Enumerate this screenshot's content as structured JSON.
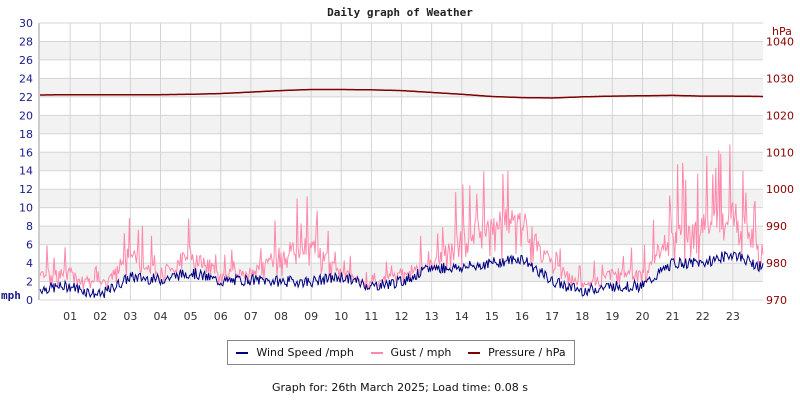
{
  "title": "Daily graph of Weather",
  "footer": "Graph for: 26th March 2025; Load time: 0.08 s",
  "legend": [
    {
      "label": "Wind Speed /mph",
      "color": "#000080"
    },
    {
      "label": "Gust / mph",
      "color": "#ff88aa"
    },
    {
      "label": "Pressure / hPa",
      "color": "#800000"
    }
  ],
  "colors": {
    "wind": "#000080",
    "gust": "#ff88aa",
    "pressure": "#800000",
    "left_axis": "#1a1a8c",
    "right_axis": "#8b0000",
    "grid": "#d4d4d4",
    "band": "#f2f2f2"
  },
  "chart_data": {
    "type": "line",
    "title": "Daily graph of Weather",
    "xlabel": "",
    "ylabel_left": "mph",
    "ylabel_right": "hPa",
    "ylim_left": [
      0,
      30
    ],
    "ylim_right": [
      970,
      1045
    ],
    "x_ticks": [
      "01",
      "02",
      "03",
      "04",
      "05",
      "06",
      "07",
      "08",
      "09",
      "10",
      "11",
      "12",
      "13",
      "14",
      "15",
      "16",
      "17",
      "18",
      "19",
      "20",
      "21",
      "22",
      "23"
    ],
    "y_ticks_left": [
      0,
      2,
      4,
      6,
      8,
      10,
      12,
      14,
      16,
      18,
      20,
      22,
      24,
      26,
      28,
      30
    ],
    "y_ticks_right": [
      970,
      980,
      990,
      1000,
      1010,
      1020,
      1030,
      1040
    ],
    "grid": true,
    "legend_position": "bottom",
    "x_hours": [
      0,
      1,
      2,
      3,
      4,
      5,
      6,
      7,
      8,
      9,
      10,
      11,
      12,
      13,
      14,
      15,
      16,
      17,
      18,
      19,
      20,
      21,
      22,
      23,
      24
    ],
    "series": [
      {
        "name": "Wind Speed /mph",
        "axis": "left",
        "values": [
          1.2,
          1.5,
          0.5,
          2.5,
          2.2,
          3.0,
          2.0,
          2.2,
          2.0,
          2.0,
          2.5,
          1.5,
          2.0,
          3.5,
          3.5,
          4.0,
          4.5,
          2.0,
          1.0,
          1.5,
          1.5,
          4.0,
          4.0,
          5.0,
          3.5
        ]
      },
      {
        "name": "Gust / mph",
        "axis": "left",
        "values": [
          3.5,
          3.5,
          2.0,
          6.0,
          3.5,
          6.0,
          3.5,
          3.5,
          6.0,
          7.0,
          3.5,
          2.0,
          3.5,
          4.5,
          8.0,
          10.0,
          10.0,
          4.5,
          2.0,
          3.5,
          3.5,
          8.5,
          9.5,
          11.0,
          6.0
        ]
      },
      {
        "name": "Pressure / hPa",
        "axis": "right",
        "values": [
          1025.5,
          1025.6,
          1025.6,
          1025.6,
          1025.6,
          1025.7,
          1025.9,
          1026.3,
          1026.7,
          1027.0,
          1027.0,
          1026.9,
          1026.7,
          1026.2,
          1025.7,
          1025.1,
          1024.8,
          1024.7,
          1025.0,
          1025.2,
          1025.3,
          1025.4,
          1025.2,
          1025.2,
          1025.1
        ]
      }
    ]
  }
}
